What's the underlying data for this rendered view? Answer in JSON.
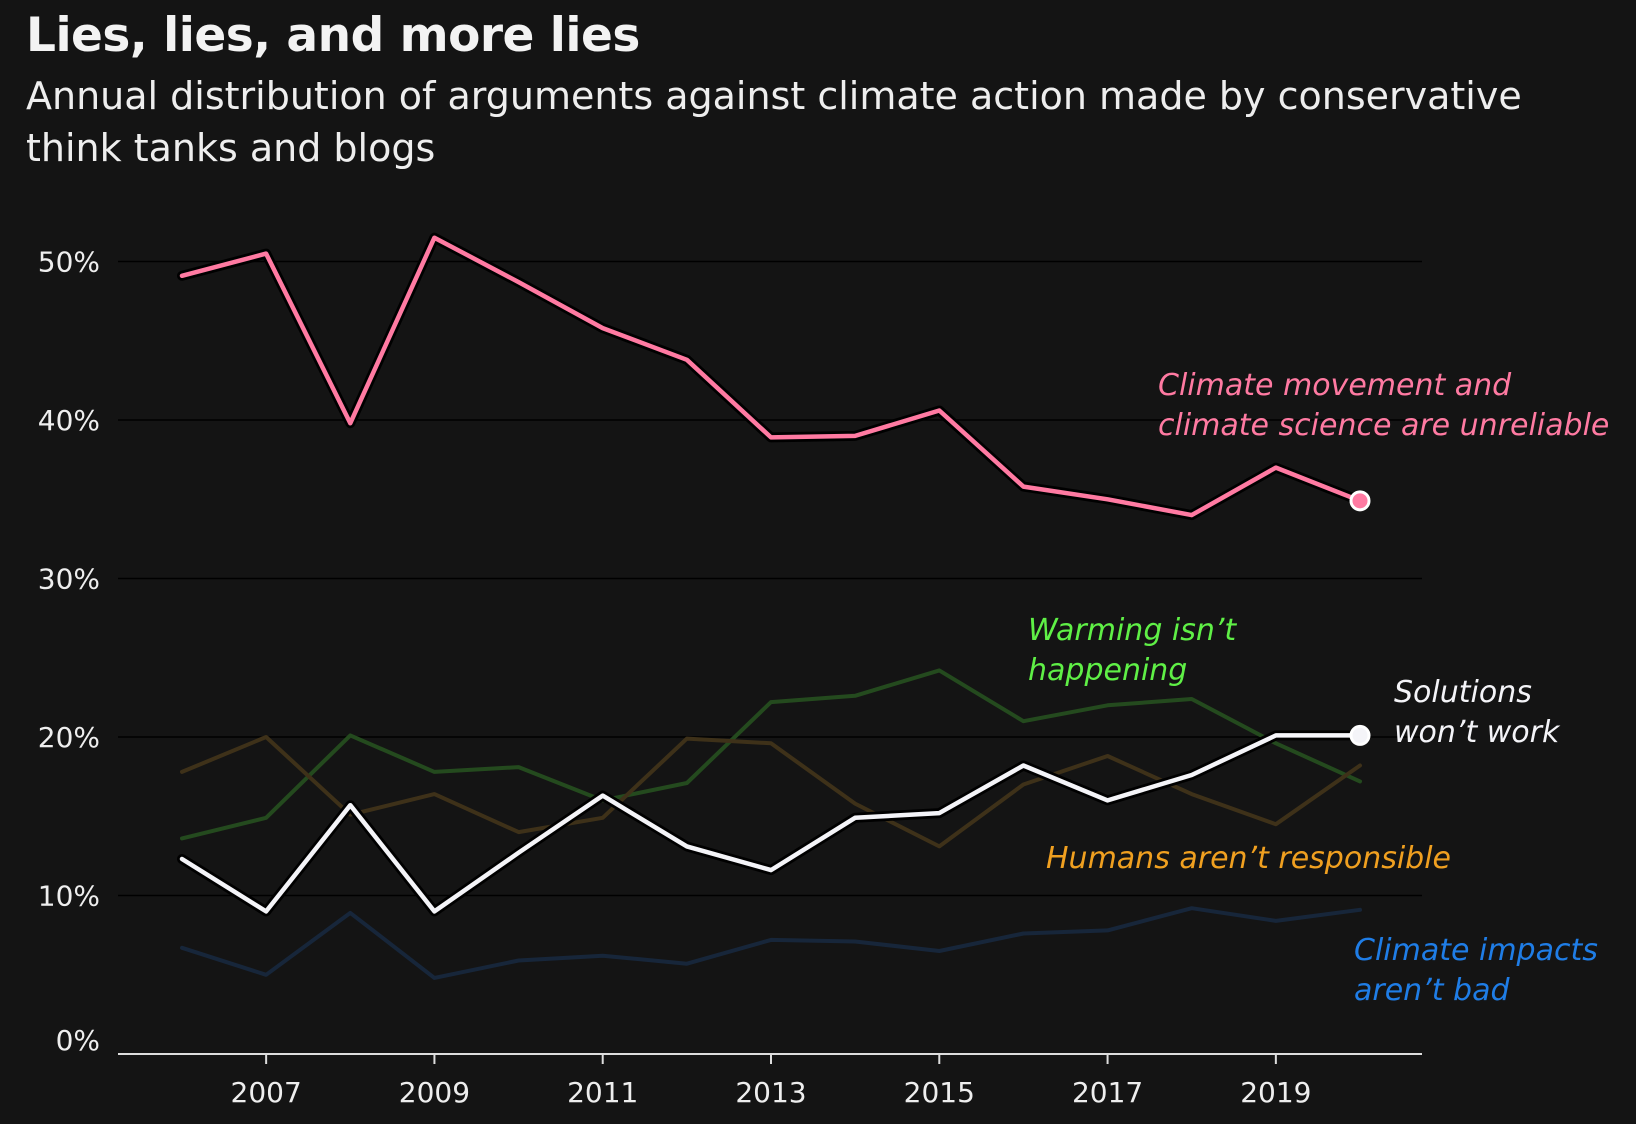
{
  "chart_data": {
    "type": "line",
    "title": "Lies, lies, and more lies",
    "subtitle": "Annual distribution of arguments against climate action made by conservative think tanks and blogs",
    "x": [
      2006,
      2007,
      2008,
      2009,
      2010,
      2011,
      2012,
      2013,
      2014,
      2015,
      2016,
      2017,
      2018,
      2019,
      2020
    ],
    "x_ticks": [
      2007,
      2009,
      2011,
      2013,
      2015,
      2017,
      2019
    ],
    "y_ticks": [
      0,
      10,
      20,
      30,
      40,
      50
    ],
    "y_tick_labels": [
      "0%",
      "10%",
      "20%",
      "30%",
      "40%",
      "50%"
    ],
    "ylim": [
      0,
      52
    ],
    "grid": true,
    "series": [
      {
        "name": "Climate movement and climate science are unreliable",
        "label_lines": [
          "Climate movement and",
          "climate science are unreliable"
        ],
        "color": "#ff7aa2",
        "highlight": true,
        "end_marker": true,
        "values": [
          49.1,
          50.5,
          39.8,
          51.5,
          48.7,
          45.8,
          43.8,
          38.9,
          39.0,
          40.6,
          35.8,
          35.0,
          34.0,
          37.0,
          34.9
        ]
      },
      {
        "name": "Warming isn’t happening",
        "label_lines": [
          "Warming isn’t",
          "happening"
        ],
        "color": "#5ff046",
        "line_color": "#244a1e",
        "highlight": false,
        "end_marker": false,
        "values": [
          13.6,
          14.9,
          20.1,
          17.8,
          18.1,
          16.0,
          17.1,
          22.2,
          22.6,
          24.2,
          21.0,
          22.0,
          22.4,
          19.6,
          17.2
        ]
      },
      {
        "name": "Humans aren’t responsible",
        "label_lines": [
          "Humans aren’t responsible"
        ],
        "color": "#f0a020",
        "line_color": "#3e3119",
        "highlight": false,
        "end_marker": false,
        "values": [
          17.8,
          20.0,
          15.1,
          16.4,
          14.0,
          14.9,
          19.9,
          19.6,
          15.8,
          13.1,
          17.0,
          18.8,
          16.4,
          14.5,
          18.2
        ]
      },
      {
        "name": "Solutions won’t work",
        "label_lines": [
          "Solutions",
          "won’t work"
        ],
        "color": "#f4f4f8",
        "highlight": true,
        "end_marker": true,
        "values": [
          12.3,
          9.0,
          15.7,
          9.0,
          12.7,
          16.3,
          13.1,
          11.6,
          14.9,
          15.2,
          18.2,
          16.0,
          17.6,
          20.1,
          20.1
        ]
      },
      {
        "name": "Climate impacts aren’t bad",
        "label_lines": [
          "Climate impacts",
          "aren’t bad"
        ],
        "color": "#1f7de6",
        "line_color": "#17263a",
        "highlight": false,
        "end_marker": false,
        "values": [
          6.7,
          5.0,
          8.9,
          4.8,
          5.9,
          6.2,
          5.7,
          7.2,
          7.1,
          6.5,
          7.6,
          7.8,
          9.2,
          8.4,
          9.1
        ]
      }
    ]
  }
}
